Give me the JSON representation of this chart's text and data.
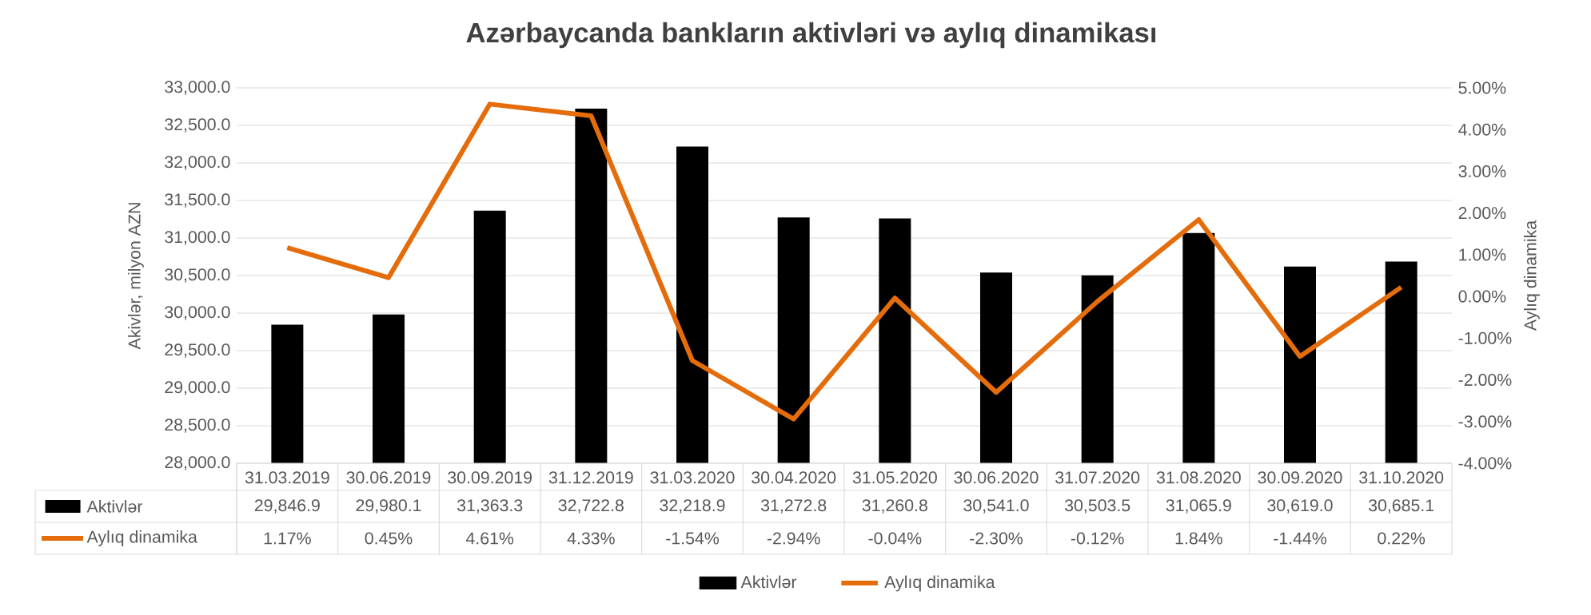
{
  "chart_data": {
    "type": "bar",
    "title": "Azərbaycanda bankların aktivləri və aylıq dinamikası",
    "ylabel": "Akivlər, milyon AZN",
    "y2label": "Aylıq dinamika",
    "categories": [
      "31.03.2019",
      "30.06.2019",
      "30.09.2019",
      "31.12.2019",
      "31.03.2020",
      "30.04.2020",
      "31.05.2020",
      "30.06.2020",
      "31.07.2020",
      "31.08.2020",
      "30.09.2020",
      "31.10.2020"
    ],
    "series": [
      {
        "name": "Aktivlər",
        "type": "bar",
        "color": "#000000",
        "values": [
          29846.9,
          29980.1,
          31363.3,
          32722.8,
          32218.9,
          31272.8,
          31260.8,
          30541.0,
          30503.5,
          31065.9,
          30619.0,
          30685.1
        ],
        "value_labels": [
          "29,846.9",
          "29,980.1",
          "31,363.3",
          "32,722.8",
          "32,218.9",
          "31,272.8",
          "31,260.8",
          "30,541.0",
          "30,503.5",
          "31,065.9",
          "30,619.0",
          "30,685.1"
        ]
      },
      {
        "name": "Aylıq dinamika",
        "type": "line",
        "axis": "y2",
        "color": "#e46c0a",
        "values": [
          1.17,
          0.45,
          4.61,
          4.33,
          -1.54,
          -2.94,
          -0.04,
          -2.3,
          -0.12,
          1.84,
          -1.44,
          0.22
        ],
        "value_labels": [
          "1.17%",
          "0.45%",
          "4.61%",
          "4.33%",
          "-1.54%",
          "-2.94%",
          "-0.04%",
          "-2.30%",
          "-0.12%",
          "1.84%",
          "-1.44%",
          "0.22%"
        ]
      }
    ],
    "ylim": [
      28000,
      33000
    ],
    "yticks": [
      {
        "value": 28000,
        "label": "28,000.0"
      },
      {
        "value": 28500,
        "label": "28,500.0"
      },
      {
        "value": 29000,
        "label": "29,000.0"
      },
      {
        "value": 29500,
        "label": "29,500.0"
      },
      {
        "value": 30000,
        "label": "30,000.0"
      },
      {
        "value": 30500,
        "label": "30,500.0"
      },
      {
        "value": 31000,
        "label": "31,000.0"
      },
      {
        "value": 31500,
        "label": "31,500.0"
      },
      {
        "value": 32000,
        "label": "32,000.0"
      },
      {
        "value": 32500,
        "label": "32,500.0"
      },
      {
        "value": 33000,
        "label": "33,000.0"
      }
    ],
    "y2lim": [
      -4,
      5
    ],
    "y2ticks": [
      {
        "value": -4,
        "label": "-4.00%"
      },
      {
        "value": -3,
        "label": "-3.00%"
      },
      {
        "value": -2,
        "label": "-2.00%"
      },
      {
        "value": -1,
        "label": "-1.00%"
      },
      {
        "value": 0,
        "label": "0.00%"
      },
      {
        "value": 1,
        "label": "1.00%"
      },
      {
        "value": 2,
        "label": "2.00%"
      },
      {
        "value": 3,
        "label": "3.00%"
      },
      {
        "value": 4,
        "label": "4.00%"
      },
      {
        "value": 5,
        "label": "5.00%"
      }
    ],
    "grid": "y",
    "legend": "bottom"
  }
}
